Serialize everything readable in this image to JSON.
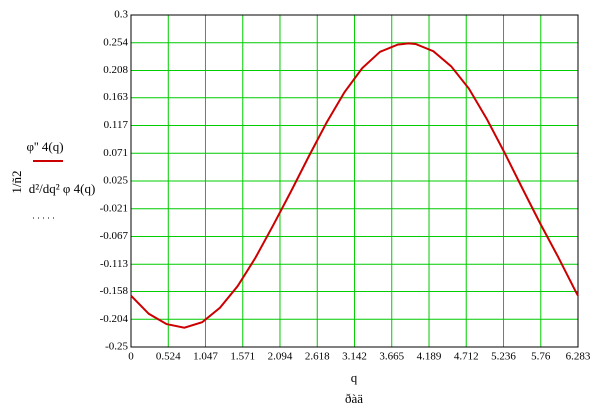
{
  "chart_data": {
    "type": "line",
    "ylabel": "1/ñ2",
    "xlabel": "q",
    "xunit": "ðàä",
    "annotation": "d²/dq² φ 4(q)",
    "x": [
      0,
      0.25,
      0.5,
      0.75,
      1.0,
      1.25,
      1.5,
      1.75,
      2.0,
      2.25,
      2.5,
      2.75,
      3.0,
      3.25,
      3.5,
      3.75,
      3.9,
      4.0,
      4.25,
      4.5,
      4.75,
      5.0,
      5.25,
      5.5,
      5.75,
      6.0,
      6.25,
      6.283
    ],
    "series": [
      {
        "name": "φ'' 4(q)",
        "color": "#cc0000",
        "values": [
          -0.165,
          -0.195,
          -0.212,
          -0.218,
          -0.209,
          -0.185,
          -0.149,
          -0.102,
          -0.048,
          0.008,
          0.066,
          0.122,
          0.172,
          0.212,
          0.239,
          0.251,
          0.253,
          0.252,
          0.24,
          0.215,
          0.178,
          0.128,
          0.072,
          0.013,
          -0.045,
          -0.1,
          -0.158,
          -0.165
        ]
      }
    ],
    "xlim": [
      0,
      6.283
    ],
    "ylim": [
      -0.25,
      0.3
    ],
    "xticks": [
      0,
      0.524,
      1.047,
      1.571,
      2.094,
      2.618,
      3.142,
      3.665,
      4.189,
      4.712,
      5.236,
      5.76,
      6.283
    ],
    "yticks": [
      0.3,
      0.254,
      0.208,
      0.163,
      0.117,
      0.071,
      0.025,
      -0.021,
      -0.067,
      -0.113,
      -0.158,
      -0.204,
      -0.25
    ],
    "grid": true,
    "grid_color": "#00cc00"
  }
}
